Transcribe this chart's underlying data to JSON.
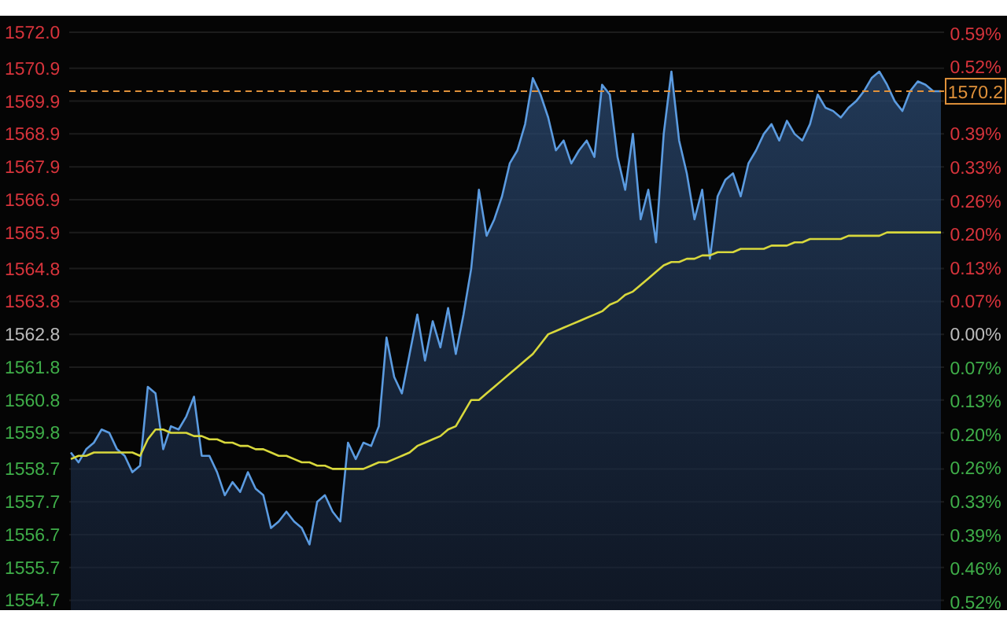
{
  "chart_data": {
    "type": "area",
    "categories": [
      null,
      null,
      null,
      null,
      null,
      null,
      null,
      null,
      null,
      null,
      null,
      null,
      null,
      null,
      null,
      null,
      null,
      null,
      null,
      null,
      null,
      null,
      null,
      null,
      null,
      null,
      null,
      null,
      null,
      null,
      null,
      null,
      null,
      null,
      null,
      null,
      null,
      null,
      null,
      null,
      null,
      null,
      null,
      null,
      null,
      null,
      null,
      null,
      null,
      null,
      null,
      null,
      null,
      null,
      null,
      null,
      null,
      null,
      null,
      null,
      null,
      null,
      null,
      null,
      null,
      null,
      null,
      null,
      null,
      null,
      null,
      null,
      null,
      null,
      null,
      null,
      null,
      null,
      null,
      null,
      null,
      null,
      null,
      null,
      null,
      null,
      null,
      null,
      null,
      null,
      null,
      null,
      null,
      null,
      null,
      null,
      null,
      null,
      null,
      null,
      null,
      null,
      null,
      null,
      null,
      null,
      null,
      null,
      null,
      null,
      null,
      null,
      null,
      null
    ],
    "series": [
      {
        "color": "#5b9be0",
        "values": [
          1559.2,
          1558.9,
          1559.3,
          1559.5,
          1559.9,
          1559.8,
          1559.3,
          1559.1,
          1558.6,
          1558.8,
          1561.2,
          1561.0,
          1559.3,
          1560.0,
          1559.9,
          1560.3,
          1560.9,
          1559.1,
          1559.1,
          1558.6,
          1557.9,
          1558.3,
          1558.0,
          1558.6,
          1558.1,
          1557.9,
          1556.9,
          1557.1,
          1557.4,
          1557.1,
          1556.9,
          1556.4,
          1557.7,
          1557.9,
          1557.4,
          1557.1,
          1559.5,
          1559.0,
          1559.5,
          1559.4,
          1560.0,
          1562.7,
          1561.5,
          1561.0,
          1562.2,
          1563.4,
          1562.0,
          1563.2,
          1562.4,
          1563.6,
          1562.2,
          1563.4,
          1564.8,
          1567.2,
          1565.8,
          1566.3,
          1567.0,
          1568.0,
          1568.4,
          1569.2,
          1570.6,
          1570.1,
          1569.4,
          1568.4,
          1568.7,
          1568.0,
          1568.4,
          1568.7,
          1568.2,
          1570.4,
          1570.1,
          1568.2,
          1567.2,
          1568.9,
          1566.3,
          1567.2,
          1565.6,
          1568.9,
          1570.8,
          1568.7,
          1567.7,
          1566.3,
          1567.2,
          1565.1,
          1567.0,
          1567.5,
          1567.7,
          1567.0,
          1568.0,
          1568.4,
          1568.9,
          1569.2,
          1568.7,
          1569.3,
          1568.9,
          1568.7,
          1569.2,
          1570.1,
          1569.7,
          1569.6,
          1569.4,
          1569.7,
          1569.9,
          1570.2,
          1570.6,
          1570.8,
          1570.4,
          1569.9,
          1569.6,
          1570.2,
          1570.5,
          1570.4,
          1570.2,
          1570.2
        ]
      },
      {
        "type": "line",
        "color": "#d8d83c",
        "values": [
          1559.0,
          1559.1,
          1559.1,
          1559.2,
          1559.2,
          1559.2,
          1559.2,
          1559.2,
          1559.2,
          1559.1,
          1559.6,
          1559.9,
          1559.9,
          1559.8,
          1559.8,
          1559.8,
          1559.7,
          1559.7,
          1559.6,
          1559.6,
          1559.5,
          1559.5,
          1559.4,
          1559.4,
          1559.3,
          1559.3,
          1559.2,
          1559.1,
          1559.1,
          1559.0,
          1558.9,
          1558.9,
          1558.8,
          1558.8,
          1558.7,
          1558.7,
          1558.7,
          1558.7,
          1558.7,
          1558.8,
          1558.9,
          1558.9,
          1559.0,
          1559.1,
          1559.2,
          1559.4,
          1559.5,
          1559.6,
          1559.7,
          1559.9,
          1560.0,
          1560.4,
          1560.8,
          1560.8,
          1561.0,
          1561.2,
          1561.4,
          1561.6,
          1561.8,
          1562.0,
          1562.2,
          1562.5,
          1562.8,
          1562.9,
          1563.0,
          1563.1,
          1563.2,
          1563.3,
          1563.4,
          1563.5,
          1563.7,
          1563.8,
          1564.0,
          1564.1,
          1564.3,
          1564.5,
          1564.7,
          1564.9,
          1565.0,
          1565.0,
          1565.1,
          1565.1,
          1565.2,
          1565.2,
          1565.3,
          1565.3,
          1565.3,
          1565.4,
          1565.4,
          1565.4,
          1565.4,
          1565.5,
          1565.5,
          1565.5,
          1565.6,
          1565.6,
          1565.7,
          1565.7,
          1565.7,
          1565.7,
          1565.7,
          1565.8,
          1565.8,
          1565.8,
          1565.8,
          1565.8,
          1565.9,
          1565.9,
          1565.9,
          1565.9,
          1565.9,
          1565.9,
          1565.9,
          1565.9
        ]
      }
    ],
    "ylim": [
      1554.4,
      1572.5
    ],
    "yticks": [
      {
        "value": 1572.0,
        "label": "1572.0"
      },
      1570.9,
      1569.9,
      1568.9,
      1567.9,
      1566.9,
      1565.9,
      1564.8,
      1563.8,
      1562.8,
      1561.8,
      1560.8,
      1559.8,
      1558.7,
      1557.7,
      1556.7,
      1555.7,
      1554.7
    ],
    "y2lim": [
      -0.537,
      0.621
    ],
    "y2ticks": [
      {
        "value": 0.586,
        "label": "0.59%"
      },
      {
        "value": 0.521,
        "label": "0.52%"
      },
      {
        "value": 0.391,
        "label": "0.39%"
      },
      {
        "value": 0.326,
        "label": "0.33%"
      },
      {
        "value": 0.26,
        "label": "0.26%"
      },
      {
        "value": 0.195,
        "label": "0.20%"
      },
      {
        "value": 0.13,
        "label": "0.13%"
      },
      {
        "value": 0.065,
        "label": "0.07%"
      },
      {
        "value": 0,
        "label": "0.00%"
      },
      {
        "value": -0.065,
        "label": "0.07%"
      },
      {
        "value": -0.13,
        "label": "0.13%"
      },
      {
        "value": -0.195,
        "label": "0.20%"
      },
      {
        "value": -0.26,
        "label": "0.26%"
      },
      {
        "value": -0.326,
        "label": "0.33%"
      },
      {
        "value": -0.391,
        "label": "0.39%"
      },
      {
        "value": -0.456,
        "label": "0.46%"
      },
      {
        "value": -0.521,
        "label": "0.52%"
      }
    ],
    "ref_lines": [
      {
        "axis": "y",
        "value": 1570.2,
        "label": "1570.2",
        "color": "#e0913a",
        "line_style": "dashed"
      }
    ],
    "grid": "y",
    "tick_labels": "y"
  }
}
